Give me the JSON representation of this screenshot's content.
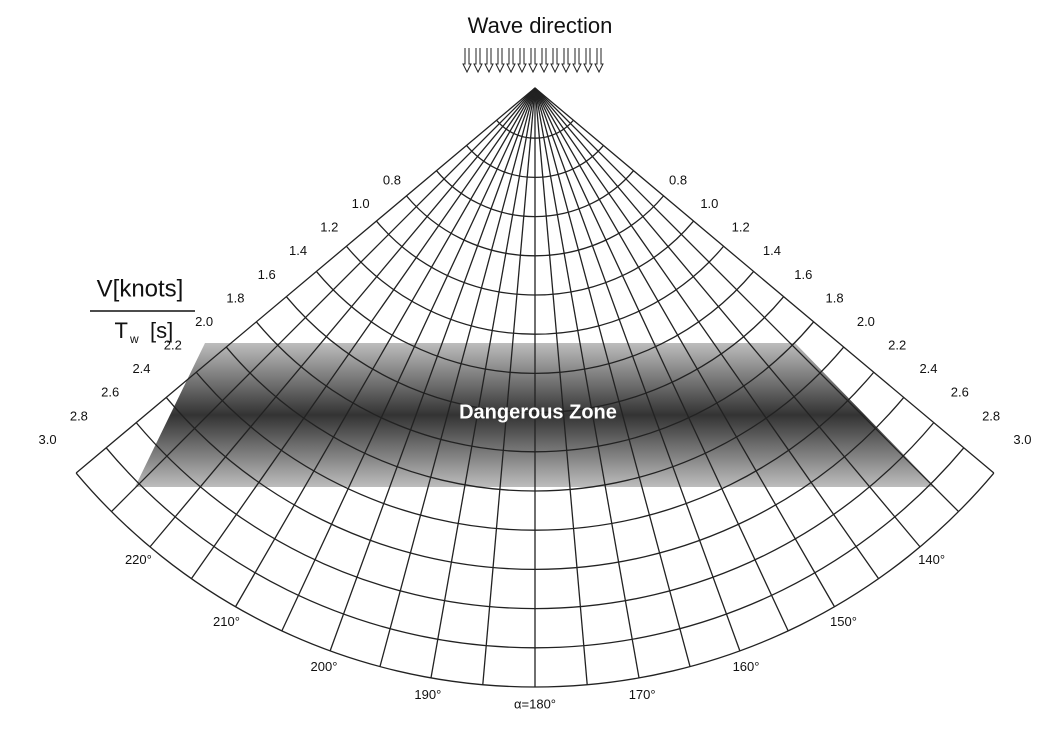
{
  "title": "Wave direction",
  "y_label": {
    "numerator": "V[knots]",
    "denominator_main": "T",
    "denominator_sub": "w",
    "denominator_unit": "[s]"
  },
  "ratio_labels": [
    "0.8",
    "1.0",
    "1.2",
    "1.4",
    "1.6",
    "1.8",
    "2.0",
    "2.2",
    "2.4",
    "2.6",
    "2.8",
    "3.0"
  ],
  "angle_labels": [
    "220°",
    "210°",
    "200°",
    "190°",
    "α=180°",
    "170°",
    "160°",
    "150°",
    "140°"
  ],
  "zone_label": "Dangerous Zone"
}
